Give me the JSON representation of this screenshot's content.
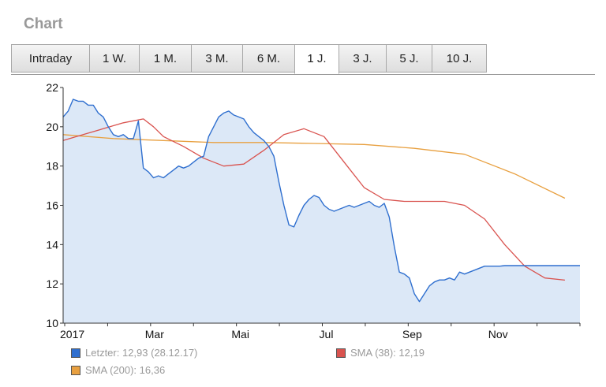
{
  "header": {
    "title": "Chart"
  },
  "tabs": [
    {
      "label": "Intraday"
    },
    {
      "label": "1 W."
    },
    {
      "label": "1 M."
    },
    {
      "label": "3 M."
    },
    {
      "label": "6 M."
    },
    {
      "label": "1 J."
    },
    {
      "label": "3 J."
    },
    {
      "label": "5 J."
    },
    {
      "label": "10 J."
    }
  ],
  "active_tab": "1 J.",
  "chart_data": {
    "type": "line",
    "x_tick_labels": [
      "2017",
      "Mar",
      "Mai",
      "Jul",
      "Sep",
      "Nov"
    ],
    "ylim": [
      10,
      22
    ],
    "yticks": [
      10,
      12,
      14,
      16,
      18,
      20,
      22
    ],
    "grid": false,
    "series": [
      {
        "name": "Letzter",
        "color": "#2f6fcf",
        "fill": "#dce8f7",
        "x": [
          0,
          0.5,
          1,
          1.5,
          2,
          2.5,
          3,
          3.5,
          4,
          4.5,
          5,
          5.5,
          6,
          6.5,
          7,
          7.5,
          8,
          8.5,
          9,
          9.5,
          10,
          10.5,
          11,
          11.5,
          12,
          12.5,
          13,
          13.5,
          14,
          14.5,
          15,
          15.5,
          16,
          16.5,
          17,
          17.5,
          18,
          18.5,
          19,
          19.5,
          20,
          20.5,
          21,
          21.5,
          22,
          22.5,
          23,
          23.5,
          24,
          24.5,
          25,
          25.5,
          26,
          26.5,
          27,
          27.5,
          28,
          28.5,
          29,
          29.5,
          30,
          30.5,
          31,
          31.5,
          32,
          32.5,
          33,
          33.5,
          34,
          34.5,
          35,
          35.5,
          36,
          36.5,
          37,
          37.5,
          38,
          38.5,
          39,
          39.5,
          40,
          40.5,
          41,
          41.5,
          42,
          42.5,
          43,
          43.5,
          44,
          44.5,
          45,
          45.5,
          46,
          46.5,
          47,
          47.5,
          48,
          48.5,
          49,
          49.5,
          50,
          50.5,
          51,
          51.5
        ],
        "y": [
          20.5,
          20.8,
          21.4,
          21.3,
          21.3,
          21.1,
          21.1,
          20.7,
          20.5,
          20.0,
          19.6,
          19.5,
          19.6,
          19.4,
          19.4,
          20.3,
          17.9,
          17.7,
          17.4,
          17.5,
          17.4,
          17.6,
          17.8,
          18.0,
          17.9,
          18.0,
          18.2,
          18.4,
          18.5,
          19.5,
          20.0,
          20.5,
          20.7,
          20.8,
          20.6,
          20.5,
          20.4,
          20.0,
          19.7,
          19.5,
          19.3,
          19.0,
          18.5,
          17.2,
          16.0,
          15.0,
          14.9,
          15.5,
          16.0,
          16.3,
          16.5,
          16.4,
          16.0,
          15.8,
          15.7,
          15.8,
          15.9,
          16.0,
          15.9,
          16.0,
          16.1,
          16.2,
          16.0,
          15.9,
          16.1,
          15.4,
          13.9,
          12.6,
          12.5,
          12.3,
          11.5,
          11.1,
          11.5,
          11.9,
          12.1,
          12.2,
          12.2,
          12.3,
          12.2,
          12.6,
          12.5,
          12.6,
          12.7,
          12.8,
          12.9,
          12.9,
          12.9,
          12.9,
          12.93,
          12.93,
          12.93,
          12.93,
          12.93,
          12.93,
          12.93,
          12.93,
          12.93,
          12.93,
          12.93,
          12.93,
          12.93,
          12.93,
          12.93,
          12.93
        ]
      },
      {
        "name": "SMA (38)",
        "color": "#d9534f",
        "x": [
          0,
          2,
          4,
          6,
          8,
          9,
          10,
          12,
          14,
          16,
          18,
          20,
          22,
          24,
          26,
          28,
          30,
          32,
          34,
          36,
          38,
          40,
          42,
          44,
          46,
          48,
          50
        ],
        "y": [
          19.3,
          19.6,
          19.9,
          20.2,
          20.4,
          20.0,
          19.5,
          19.0,
          18.4,
          18.0,
          18.1,
          18.8,
          19.6,
          19.9,
          19.5,
          18.2,
          16.9,
          16.3,
          16.2,
          16.2,
          16.2,
          16.0,
          15.3,
          14.0,
          12.9,
          12.3,
          12.19
        ]
      },
      {
        "name": "SMA (200)",
        "color": "#e8a040",
        "x": [
          0,
          5,
          10,
          15,
          20,
          25,
          30,
          35,
          40,
          45,
          50
        ],
        "y": [
          19.6,
          19.4,
          19.3,
          19.2,
          19.2,
          19.15,
          19.1,
          18.9,
          18.6,
          17.6,
          16.36
        ]
      }
    ],
    "legend": [
      {
        "label": "Letzter: 12,93 (28.12.17)",
        "color": "#2f6fcf"
      },
      {
        "label": "SMA (38): 12,19",
        "color": "#d9534f"
      },
      {
        "label": "SMA (200): 16,36",
        "color": "#e8a040"
      }
    ]
  }
}
